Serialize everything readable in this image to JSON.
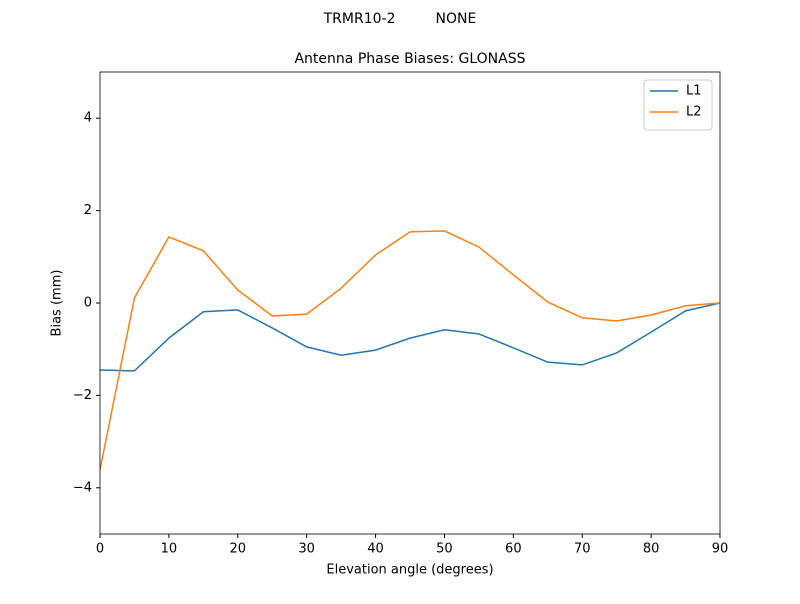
{
  "chart_data": {
    "type": "line",
    "suptitle": "TRMR10-2         NONE",
    "title": "Antenna Phase Biases: GLONASS",
    "x_label": "Elevation angle (degrees)",
    "y_label": "Bias (mm)",
    "x": [
      0,
      5,
      10,
      15,
      20,
      25,
      30,
      35,
      40,
      45,
      50,
      55,
      60,
      65,
      70,
      75,
      80,
      85,
      90
    ],
    "series": [
      {
        "name": "L1",
        "color": "#1f77b4",
        "values": [
          -1.45,
          -1.47,
          -0.76,
          -0.19,
          -0.15,
          -0.54,
          -0.95,
          -1.13,
          -1.02,
          -0.76,
          -0.58,
          -0.67,
          -0.97,
          -1.28,
          -1.34,
          -1.08,
          -0.63,
          -0.17,
          0
        ]
      },
      {
        "name": "L2",
        "color": "#ff7f0e",
        "values": [
          -3.61,
          0.11,
          1.43,
          1.13,
          0.28,
          -0.28,
          -0.24,
          0.32,
          1.04,
          1.54,
          1.56,
          1.21,
          0.61,
          0.02,
          -0.32,
          -0.39,
          -0.26,
          -0.06,
          0
        ]
      }
    ],
    "xlim": [
      0,
      90
    ],
    "xticks": [
      0,
      10,
      20,
      30,
      40,
      50,
      60,
      70,
      80,
      90
    ],
    "ylim": [
      -5,
      5
    ],
    "yticks": [
      {
        "value": -4,
        "label": "−4"
      },
      {
        "value": -2,
        "label": "−2"
      },
      0,
      2,
      4
    ],
    "legend": "upper right",
    "grid": false
  }
}
